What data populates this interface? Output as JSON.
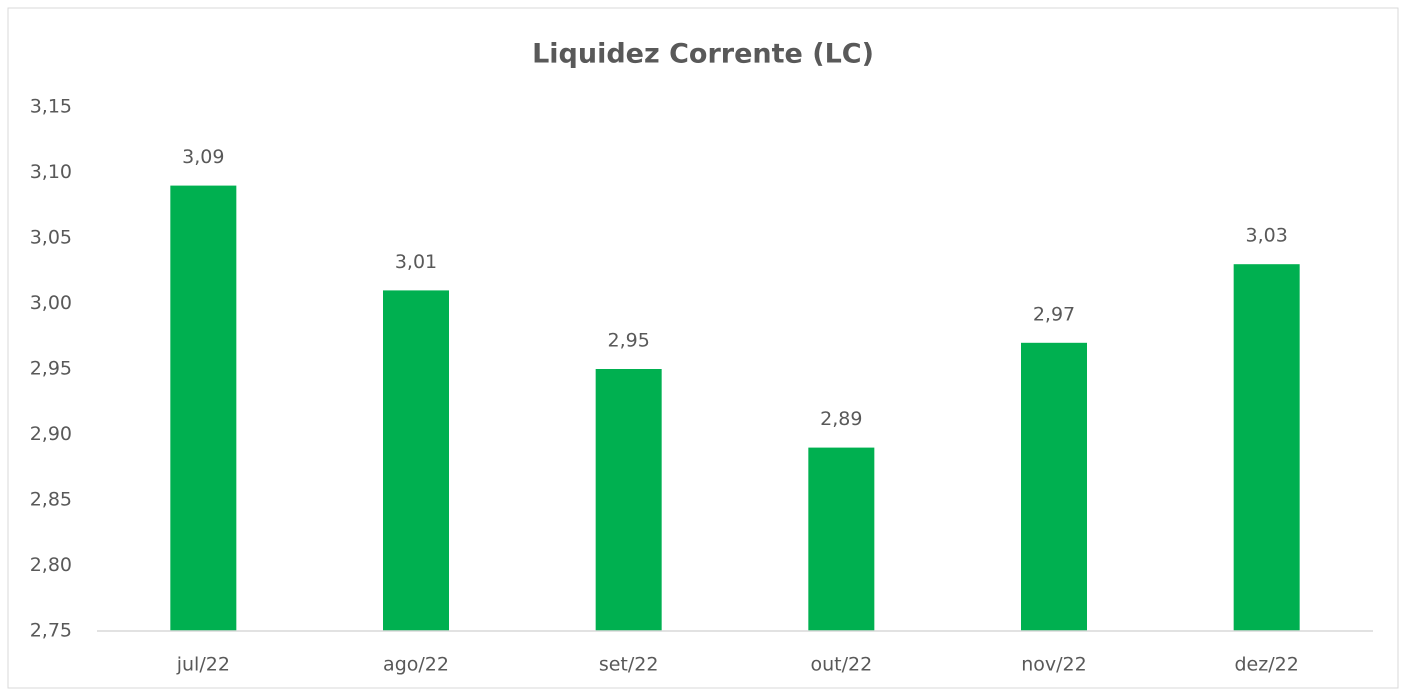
{
  "chart_data": {
    "type": "bar",
    "title": "Liquidez Corrente (LC)",
    "categories": [
      "jul/22",
      "ago/22",
      "set/22",
      "out/22",
      "nov/22",
      "dez/22"
    ],
    "values": [
      3.09,
      3.01,
      2.95,
      2.89,
      2.97,
      3.03
    ],
    "value_labels": [
      "3,09",
      "3,01",
      "2,95",
      "2,89",
      "2,97",
      "3,03"
    ],
    "color": "#00b050",
    "ylim": [
      2.75,
      3.15
    ],
    "yticks": [
      {
        "value": 2.75,
        "label": "2,75"
      },
      {
        "value": 2.8,
        "label": "2,80"
      },
      {
        "value": 2.85,
        "label": "2,85"
      },
      {
        "value": 2.9,
        "label": "2,90"
      },
      {
        "value": 2.95,
        "label": "2,95"
      },
      {
        "value": 3.0,
        "label": "3,00"
      },
      {
        "value": 3.05,
        "label": "3,05"
      },
      {
        "value": 3.1,
        "label": "3,10"
      },
      {
        "value": 3.15,
        "label": "3,15"
      }
    ],
    "grid": false
  }
}
